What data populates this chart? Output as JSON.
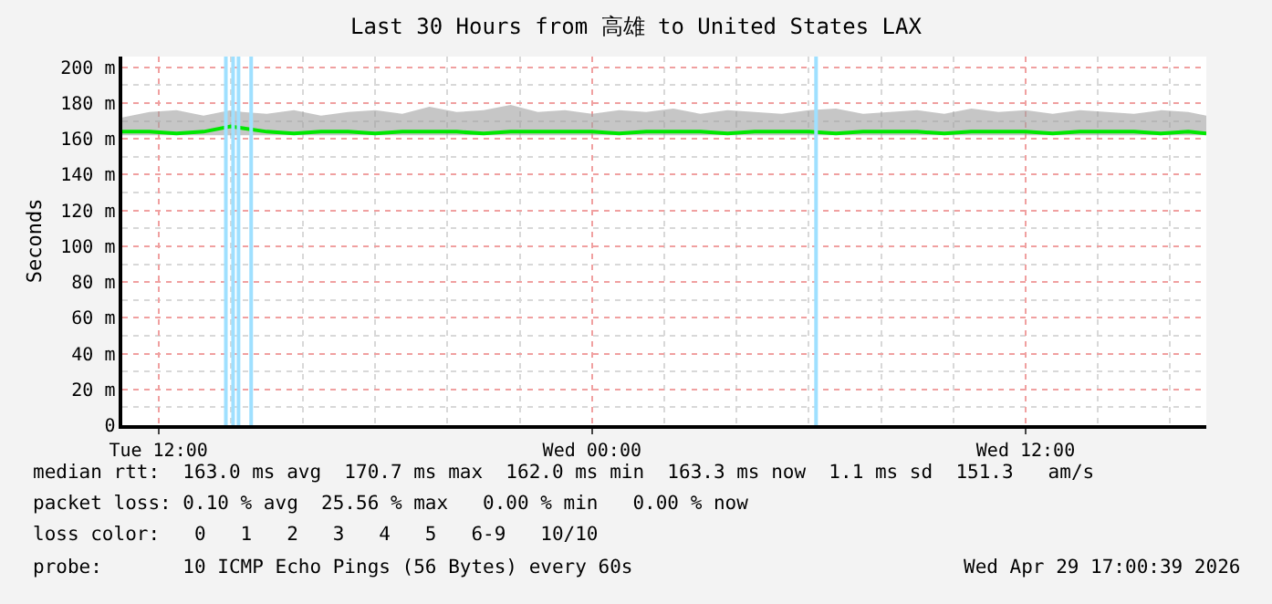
{
  "chart_data": {
    "type": "line",
    "title": "Last 30 Hours from 高雄 to United States LAX",
    "ylabel": "Seconds",
    "x": [
      "2026-04-28T11:00",
      "2026-04-28T11:45",
      "2026-04-28T12:30",
      "2026-04-28T13:15",
      "2026-04-28T14:00",
      "2026-04-28T14:20",
      "2026-04-28T15:00",
      "2026-04-28T15:45",
      "2026-04-28T16:30",
      "2026-04-28T17:15",
      "2026-04-28T18:00",
      "2026-04-28T18:45",
      "2026-04-28T19:30",
      "2026-04-28T20:15",
      "2026-04-28T21:00",
      "2026-04-28T21:45",
      "2026-04-28T22:30",
      "2026-04-28T23:15",
      "2026-04-29T00:00",
      "2026-04-29T00:45",
      "2026-04-29T01:30",
      "2026-04-29T02:15",
      "2026-04-29T03:00",
      "2026-04-29T03:45",
      "2026-04-29T04:30",
      "2026-04-29T05:15",
      "2026-04-29T06:00",
      "2026-04-29T06:45",
      "2026-04-29T07:30",
      "2026-04-29T08:15",
      "2026-04-29T09:00",
      "2026-04-29T09:45",
      "2026-04-29T10:30",
      "2026-04-29T11:15",
      "2026-04-29T12:00",
      "2026-04-29T12:45",
      "2026-04-29T13:30",
      "2026-04-29T14:15",
      "2026-04-29T15:00",
      "2026-04-29T15:45",
      "2026-04-29T16:30",
      "2026-04-29T17:00"
    ],
    "series": [
      {
        "color": "#00e800",
        "values": [
          164,
          164,
          163,
          164,
          167,
          166,
          164,
          163,
          164,
          164,
          163,
          164,
          164,
          164,
          163,
          164,
          164,
          164,
          164,
          163,
          164,
          164,
          164,
          163,
          164,
          164,
          164,
          163,
          164,
          164,
          164,
          163,
          164,
          164,
          164,
          163,
          164,
          164,
          164,
          163,
          164,
          163
        ],
        "lower": [
          162,
          162,
          162,
          162,
          162,
          162,
          162,
          162,
          162,
          162,
          162,
          162,
          162,
          162,
          162,
          162,
          162,
          162,
          162,
          162,
          162,
          162,
          162,
          162,
          162,
          162,
          162,
          162,
          162,
          162,
          162,
          162,
          162,
          162,
          162,
          162,
          162,
          162,
          162,
          162,
          162,
          162
        ],
        "upper": [
          172,
          175,
          176,
          173,
          176,
          175,
          174,
          176,
          173,
          175,
          176,
          174,
          178,
          175,
          176,
          179,
          175,
          176,
          174,
          176,
          175,
          177,
          174,
          176,
          175,
          174,
          176,
          177,
          174,
          175,
          176,
          174,
          177,
          175,
          176,
          174,
          176,
          175,
          174,
          176,
          175,
          173
        ]
      }
    ],
    "xlim": [
      "2026-04-28T11:00",
      "2026-04-29T17:00"
    ],
    "xticks": [
      {
        "value": "2026-04-28T12:00",
        "label": "Tue 12:00"
      },
      {
        "value": "2026-04-29T00:00",
        "label": "Wed 00:00"
      },
      {
        "value": "2026-04-29T12:00",
        "label": "Wed 12:00"
      }
    ],
    "ylim": [
      0,
      206
    ],
    "yticks": [
      0,
      {
        "value": 20,
        "label": "20 m"
      },
      {
        "value": 40,
        "label": "40 m"
      },
      {
        "value": 60,
        "label": "60 m"
      },
      {
        "value": 80,
        "label": "80 m"
      },
      {
        "value": 100,
        "label": "100 m"
      },
      {
        "value": 120,
        "label": "120 m"
      },
      {
        "value": 140,
        "label": "140 m"
      },
      {
        "value": 160,
        "label": "160 m"
      },
      {
        "value": 180,
        "label": "180 m"
      },
      {
        "value": 200,
        "label": "200 m"
      }
    ],
    "ref_lines": [
      {
        "axis": "x",
        "value": "2026-04-28T13:52",
        "color": "#9fe0ff"
      },
      {
        "axis": "x",
        "value": "2026-04-28T14:04",
        "color": "#9fe0ff"
      },
      {
        "axis": "x",
        "value": "2026-04-28T14:13",
        "color": "#9fe0ff"
      },
      {
        "axis": "x",
        "value": "2026-04-28T14:34",
        "color": "#9fe0ff"
      },
      {
        "axis": "x",
        "value": "2026-04-29T06:12",
        "color": "#9fe0ff"
      }
    ],
    "grid": true,
    "marker": "none",
    "annotations": [
      "median rtt:  163.0 ms avg  170.7 ms max  162.0 ms min  163.3 ms now  1.1 ms sd  151.3   am/s",
      "packet loss: 0.10 % avg  25.56 % max   0.00 % min   0.00 % now",
      "loss color:   0   1   2   3   4   5   6-9   10/10",
      "probe:       10 ICMP Echo Pings (56 Bytes) every 60s",
      "Wed Apr 29 17:00:39 2026"
    ]
  }
}
